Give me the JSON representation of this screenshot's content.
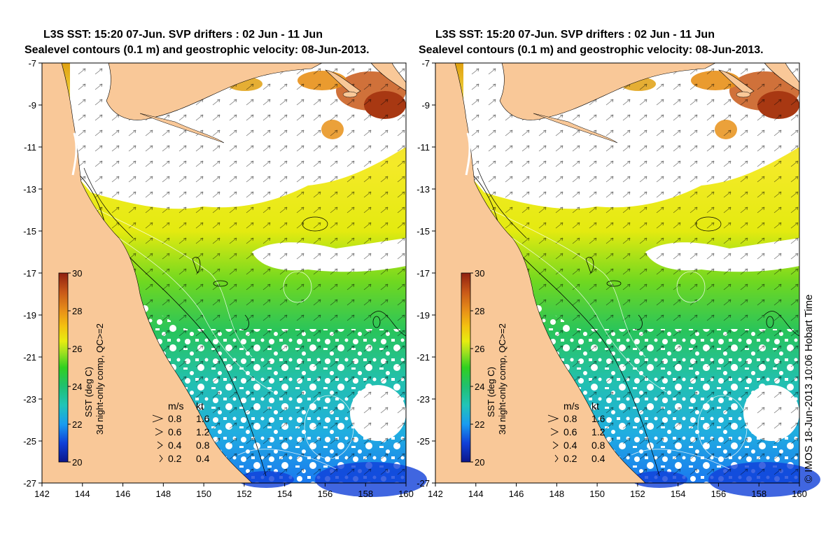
{
  "panels": [
    {
      "title_line1": "L3S SST: 15:20 07-Jun. SVP drifters : 02 Jun - 11 Jun",
      "title_line2": "Sealevel contours (0.1 m) and geostrophic velocity: 08-Jun-2013."
    },
    {
      "title_line1": "L3S SST: 15:20 07-Jun. SVP drifters : 02 Jun - 11 Jun",
      "title_line2": "Sealevel contours (0.1 m) and geostrophic velocity: 08-Jun-2013."
    }
  ],
  "axes": {
    "lat_ticks": [
      "-7",
      "-9",
      "-11",
      "-13",
      "-15",
      "-17",
      "-19",
      "-21",
      "-23",
      "-25",
      "-27"
    ],
    "lon_ticks": [
      "142",
      "144",
      "146",
      "148",
      "150",
      "152",
      "154",
      "156",
      "158",
      "160"
    ],
    "lat_range": [
      -27,
      -7
    ],
    "lon_range": [
      142,
      160
    ]
  },
  "colorbar": {
    "ticks": [
      "30",
      "28",
      "26",
      "24",
      "22",
      "20"
    ],
    "label": "SST (deg C)",
    "sublabel": "3d night-only comp, QC>=2",
    "range": [
      20,
      30
    ]
  },
  "legend": {
    "header_ms": "m/s",
    "header_kt": "kt",
    "rows": [
      {
        "ms": "0.8",
        "kt": "1.6"
      },
      {
        "ms": "0.6",
        "kt": "1.2"
      },
      {
        "ms": "0.4",
        "kt": "0.8"
      },
      {
        "ms": "0.2",
        "kt": "0.4"
      }
    ]
  },
  "credit": "© IMOS 18-Jun-2013 10:06 Hobart Time",
  "colors": {
    "land": "#f9c898",
    "cloud": "#ffffff"
  }
}
